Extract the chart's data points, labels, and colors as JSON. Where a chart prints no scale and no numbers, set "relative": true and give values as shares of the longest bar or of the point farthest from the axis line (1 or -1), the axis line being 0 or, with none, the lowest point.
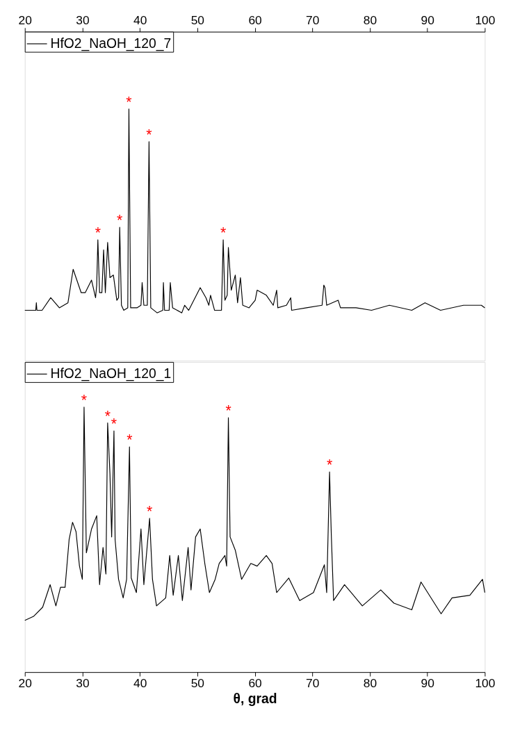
{
  "chart_data": [
    {
      "type": "line",
      "relative": true,
      "xlim": [
        20,
        100
      ],
      "xticks": [
        20,
        30,
        40,
        50,
        60,
        70,
        80,
        90,
        100
      ],
      "legend": "top left",
      "grid": false,
      "marker": "none",
      "line_style": "solid",
      "series": [
        {
          "name": "HfO2_NaOH_120_7",
          "color": "#000000",
          "x": [
            20,
            21.9,
            22,
            22.1,
            23,
            24.5,
            26,
            27.5,
            28.4,
            29.8,
            30.5,
            31.6,
            32.3,
            32.5,
            32.7,
            33.0,
            33.4,
            33.7,
            34.0,
            34.4,
            34.8,
            35.4,
            36.0,
            36.3,
            36.5,
            36.8,
            37.2,
            37.9,
            38.1,
            38.4,
            39.5,
            40.2,
            40.4,
            40.7,
            41.3,
            41.6,
            41.9,
            43,
            44.0,
            44.1,
            44.3,
            45.1,
            45.3,
            45.7,
            47.3,
            47.8,
            48.5,
            50.5,
            51.5,
            52,
            52.3,
            53,
            54.2,
            54.5,
            54.8,
            55.2,
            55.4,
            55.9,
            56.6,
            57.0,
            57.5,
            57.9,
            59,
            60.06,
            60.4,
            62.0,
            63.2,
            63.8,
            64.0,
            65.5,
            66.25,
            66.4,
            69.0,
            71.7,
            72.0,
            72.2,
            72.5,
            74.5,
            74.9,
            77.6,
            80.3,
            83.4,
            87.3,
            89.6,
            92.3,
            96.3,
            99.4,
            100
          ],
          "values": [
            0.2,
            0.2,
            0.23,
            0.2,
            0.2,
            0.25,
            0.21,
            0.23,
            0.363,
            0.27,
            0.27,
            0.32,
            0.25,
            0.3,
            0.48,
            0.27,
            0.27,
            0.44,
            0.27,
            0.47,
            0.33,
            0.34,
            0.24,
            0.25,
            0.53,
            0.22,
            0.2,
            0.21,
            1.0,
            0.21,
            0.21,
            0.22,
            0.31,
            0.22,
            0.22,
            0.87,
            0.21,
            0.19,
            0.2,
            0.31,
            0.2,
            0.2,
            0.31,
            0.21,
            0.19,
            0.22,
            0.2,
            0.29,
            0.25,
            0.22,
            0.26,
            0.2,
            0.2,
            0.48,
            0.24,
            0.26,
            0.45,
            0.28,
            0.34,
            0.23,
            0.33,
            0.22,
            0.21,
            0.24,
            0.28,
            0.26,
            0.22,
            0.28,
            0.21,
            0.22,
            0.25,
            0.2,
            0.21,
            0.22,
            0.3,
            0.29,
            0.22,
            0.24,
            0.21,
            0.21,
            0.2,
            0.22,
            0.2,
            0.23,
            0.2,
            0.22,
            0.22,
            0.21
          ]
        }
      ],
      "annotations": [
        {
          "text": "*",
          "x": 32.7,
          "y": 0.48
        },
        {
          "text": "*",
          "x": 36.5,
          "y": 0.53
        },
        {
          "text": "*",
          "x": 38.1,
          "y": 1.0
        },
        {
          "text": "*",
          "x": 41.6,
          "y": 0.87
        },
        {
          "text": "*",
          "x": 54.5,
          "y": 0.48
        }
      ]
    },
    {
      "type": "line",
      "relative": true,
      "xlim": [
        20,
        100
      ],
      "xticks": [
        20,
        30,
        40,
        50,
        60,
        70,
        80,
        90,
        100
      ],
      "xlabel": "θ, grad",
      "legend": "top left",
      "grid": false,
      "marker": "none",
      "line_style": "solid",
      "series": [
        {
          "name": "HfO2_NaOH_120_1",
          "color": "#000000",
          "x": [
            20.0,
            21.5,
            23.1,
            24.4,
            25.4,
            26.2,
            27.0,
            27.7,
            28.3,
            28.9,
            29.5,
            30.0,
            30.3,
            30.7,
            31.6,
            32.5,
            33.0,
            33.6,
            34.1,
            34.4,
            34.8,
            35.1,
            35.5,
            35.7,
            36.3,
            37.1,
            37.7,
            38.2,
            38.5,
            39.4,
            40.2,
            40.7,
            41.7,
            42.2,
            42.9,
            44.5,
            45.2,
            45.8,
            46.7,
            47.4,
            48.4,
            48.9,
            49.7,
            50.5,
            51.3,
            52.1,
            53.1,
            53.8,
            54.8,
            55.1,
            55.4,
            55.7,
            56.6,
            57.7,
            59.3,
            60.4,
            62.0,
            63.0,
            63.8,
            65.9,
            67.8,
            70.2,
            72.1,
            72.5,
            73.0,
            73.3,
            73.7,
            75.6,
            78.7,
            81.9,
            84.2,
            87.3,
            88.9,
            92.4,
            94.3,
            97.4,
            99.6,
            100
          ],
          "values": [
            0.195,
            0.21,
            0.245,
            0.33,
            0.25,
            0.32,
            0.32,
            0.5,
            0.565,
            0.53,
            0.4,
            0.35,
            1.0,
            0.45,
            0.54,
            0.59,
            0.33,
            0.47,
            0.37,
            0.94,
            0.75,
            0.51,
            0.91,
            0.5,
            0.35,
            0.28,
            0.35,
            0.85,
            0.355,
            0.3,
            0.54,
            0.33,
            0.58,
            0.35,
            0.25,
            0.28,
            0.44,
            0.29,
            0.44,
            0.27,
            0.47,
            0.31,
            0.51,
            0.54,
            0.41,
            0.3,
            0.35,
            0.41,
            0.44,
            0.4,
            0.96,
            0.51,
            0.46,
            0.35,
            0.41,
            0.4,
            0.44,
            0.41,
            0.3,
            0.355,
            0.27,
            0.3,
            0.405,
            0.3,
            0.755,
            0.52,
            0.27,
            0.33,
            0.25,
            0.31,
            0.26,
            0.235,
            0.34,
            0.22,
            0.28,
            0.29,
            0.35,
            0.3
          ]
        }
      ],
      "annotations": [
        {
          "text": "*",
          "x": 30.3,
          "y": 1.0
        },
        {
          "text": "*",
          "x": 34.4,
          "y": 0.94
        },
        {
          "text": "*",
          "x": 35.5,
          "y": 0.91
        },
        {
          "text": "*",
          "x": 38.2,
          "y": 0.85
        },
        {
          "text": "*",
          "x": 41.7,
          "y": 0.58
        },
        {
          "text": "*",
          "x": 55.4,
          "y": 0.96
        },
        {
          "text": "*",
          "x": 73.0,
          "y": 0.755
        }
      ]
    }
  ]
}
